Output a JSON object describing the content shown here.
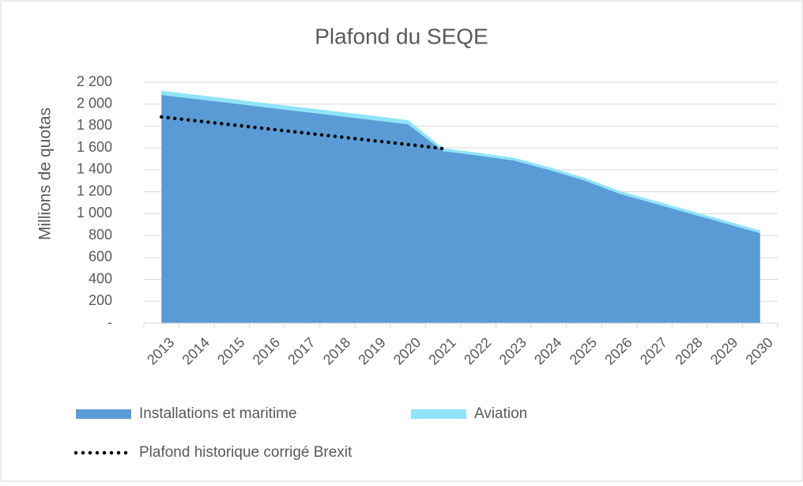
{
  "chart_data": {
    "type": "stacked-area",
    "title": "Plafond du SEQE",
    "y_label": "Millions de quotas",
    "categories": [
      "2013",
      "2014",
      "2015",
      "2016",
      "2017",
      "2018",
      "2019",
      "2020",
      "2021",
      "2022",
      "2023",
      "2024",
      "2025",
      "2026",
      "2027",
      "2028",
      "2029",
      "2030"
    ],
    "series": [
      {
        "name": "Installations et maritime",
        "color": "#5b9bd5",
        "values": [
          2084,
          2046,
          2008,
          1969,
          1931,
          1893,
          1855,
          1816,
          1572,
          1530,
          1486,
          1400,
          1305,
          1183,
          1093,
          1003,
          913,
          822
        ]
      },
      {
        "name": "Aviation",
        "color": "#8ee4f8",
        "values": [
          38,
          38,
          38,
          38,
          38,
          38,
          38,
          38,
          25,
          25,
          25,
          25,
          25,
          25,
          25,
          25,
          25,
          25
        ]
      }
    ],
    "line": {
      "name": "Plafond historique corrigé Brexit",
      "color": "#000000",
      "values": [
        1883,
        1847,
        1811,
        1775,
        1739,
        1703,
        1667,
        1631,
        1594,
        null,
        null,
        null,
        null,
        null,
        null,
        null,
        null,
        null
      ]
    },
    "ylim": [
      0,
      2200
    ],
    "yticks": [
      {
        "value": 0,
        "label": "-"
      },
      200,
      400,
      600,
      800,
      {
        "value": 1000,
        "label": "1 000"
      },
      {
        "value": 1200,
        "label": "1 200"
      },
      {
        "value": 1400,
        "label": "1 400"
      },
      {
        "value": 1600,
        "label": "1 600"
      },
      {
        "value": 1800,
        "label": "1 800"
      },
      {
        "value": 2000,
        "label": "2 000"
      },
      {
        "value": 2200,
        "label": "2 200"
      }
    ],
    "grid": true
  }
}
